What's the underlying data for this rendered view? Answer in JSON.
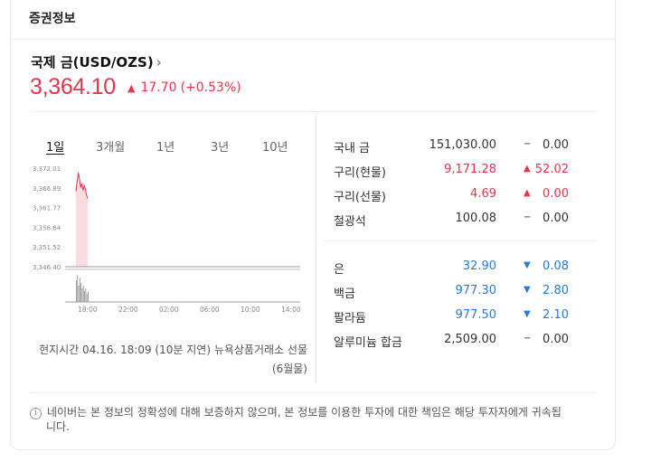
{
  "section_title": "증권정보",
  "asset": {
    "name": "국제 금(USD/OZS)",
    "price": "3,364.10",
    "change": "17.70",
    "change_pct": "(+0.53%)",
    "direction": "up"
  },
  "tabs": [
    {
      "label": "1일",
      "active": true
    },
    {
      "label": "3개월",
      "active": false
    },
    {
      "label": "1년",
      "active": false
    },
    {
      "label": "3년",
      "active": false
    },
    {
      "label": "10년",
      "active": false
    }
  ],
  "chart_data": {
    "type": "area",
    "title": "",
    "xlabel": "",
    "ylabel": "",
    "y_ticks": [
      "3,372.01",
      "3,366.89",
      "3,361.77",
      "3,356.64",
      "3,351.52",
      "3,346.40"
    ],
    "x_ticks": [
      "18:00",
      "22:00",
      "02:00",
      "06:00",
      "10:00",
      "14:00"
    ],
    "ylim": [
      3346.4,
      3372.01
    ],
    "series": [
      {
        "values": [
          3366.0,
          3368.5,
          3370.8,
          3369.2,
          3367.0,
          3368.0,
          3366.2,
          3367.5,
          3366.6,
          3365.0,
          3364.1
        ]
      }
    ],
    "volume": [
      8,
      10,
      6,
      9,
      7,
      5,
      6,
      4,
      5,
      3,
      4
    ],
    "series_color": "#e8334b",
    "area_color": "#fbdde1",
    "grid": false
  },
  "source_text": "현지시간 04.16. 18:09 (10분 지연) 뉴욕상품거래소 선물(6월물)",
  "quotes": [
    {
      "name": "국내 금",
      "price": "151,030.00",
      "tri": "−",
      "change": "0.00",
      "dir": "flat"
    },
    {
      "name": "구리(현물)",
      "price": "9,171.28",
      "tri": "▲",
      "change": "52.02",
      "dir": "up"
    },
    {
      "name": "구리(선물)",
      "price": "4.69",
      "tri": "▲",
      "change": "0.00",
      "dir": "up"
    },
    {
      "name": "철광석",
      "price": "100.08",
      "tri": "−",
      "change": "0.00",
      "dir": "flat"
    },
    {
      "name": "은",
      "price": "32.90",
      "tri": "▼",
      "change": "0.08",
      "dir": "down"
    },
    {
      "name": "백금",
      "price": "977.30",
      "tri": "▼",
      "change": "2.80",
      "dir": "down"
    },
    {
      "name": "팔라듐",
      "price": "977.50",
      "tri": "▼",
      "change": "2.10",
      "dir": "down"
    },
    {
      "name": "알루미늄 합금",
      "price": "2,509.00",
      "tri": "−",
      "change": "0.00",
      "dir": "flat"
    }
  ],
  "footnote": {
    "icon": "info-icon",
    "line1": "네이버는 본 정보의 정확성에 대해 보증하지 않으며, 본 정보를 이용한 투자에 대한 책임은 해당 투자자에게 귀속됩",
    "line2": "니다."
  }
}
